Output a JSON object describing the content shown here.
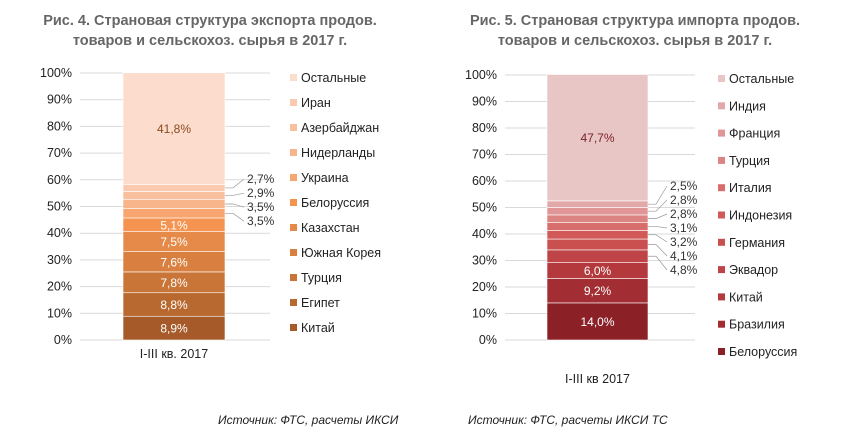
{
  "chart_data": [
    {
      "type": "bar",
      "stacked": true,
      "title": [
        "Рис. 4. Страновая структура экспорта продов.",
        "товаров и сельскохоз. сырья в 2017 г."
      ],
      "categories": [
        "I-III кв. 2017"
      ],
      "yticks": [
        "0%",
        "10%",
        "20%",
        "30%",
        "40%",
        "50%",
        "60%",
        "70%",
        "80%",
        "90%",
        "100%"
      ],
      "ylim": [
        0,
        100
      ],
      "legend_placement": "right",
      "series": [
        {
          "name": "Китай",
          "value": 8.9,
          "label": "8,9%",
          "color": "#a65a2a"
        },
        {
          "name": "Египет",
          "value": 8.8,
          "label": "8,8%",
          "color": "#b8692f"
        },
        {
          "name": "Турция",
          "value": 7.8,
          "label": "7,8%",
          "color": "#c97538"
        },
        {
          "name": "Южная Корея",
          "value": 7.6,
          "label": "7,6%",
          "color": "#d98040"
        },
        {
          "name": "Казахстан",
          "value": 7.5,
          "label": "7,5%",
          "color": "#e58a48"
        },
        {
          "name": "Белоруссия",
          "value": 5.1,
          "label": "5,1%",
          "color": "#f59350"
        },
        {
          "name": "Украина",
          "value": 3.5,
          "label": "3,5%",
          "color": "#f7a672"
        },
        {
          "name": "Нидерланды",
          "value": 3.5,
          "label": "3,5%",
          "color": "#f8b48a"
        },
        {
          "name": "Азербайджан",
          "value": 2.9,
          "label": "2,9%",
          "color": "#f9c0a0"
        },
        {
          "name": "Иран",
          "value": 2.7,
          "label": "2,7%",
          "color": "#fac9b0"
        },
        {
          "name": "Остальные",
          "value": 41.8,
          "label": "41,8%",
          "color": "#fcdccc",
          "label_color": "#8a4a1e"
        }
      ],
      "source": "Источник: ФТС, расчеты ИКСИ"
    },
    {
      "type": "bar",
      "stacked": true,
      "title": [
        "Рис. 5. Страновая структура импорта продов.",
        "товаров и сельскохоз. сырья в 2017 г."
      ],
      "categories": [
        "I-III кв 2017"
      ],
      "yticks": [
        "0%",
        "10%",
        "20%",
        "30%",
        "40%",
        "50%",
        "60%",
        "70%",
        "80%",
        "90%",
        "100%"
      ],
      "ylim": [
        0,
        100
      ],
      "legend_placement": "right",
      "series": [
        {
          "name": "Белоруссия",
          "value": 14.0,
          "label": "14,0%",
          "color": "#8b2027"
        },
        {
          "name": "Бразилия",
          "value": 9.2,
          "label": "9,2%",
          "color": "#a22e33"
        },
        {
          "name": "Китай",
          "value": 6.0,
          "label": "6,0%",
          "color": "#b3393c"
        },
        {
          "name": "Эквадор",
          "value": 4.8,
          "label": "4,8%",
          "color": "#bf4448"
        },
        {
          "name": "Германия",
          "value": 4.1,
          "label": "4,1%",
          "color": "#c9504f"
        },
        {
          "name": "Индонезия",
          "value": 3.2,
          "label": "3,2%",
          "color": "#d15a58"
        },
        {
          "name": "Италия",
          "value": 3.1,
          "label": "3,1%",
          "color": "#d86e6c"
        },
        {
          "name": "Турция",
          "value": 2.8,
          "label": "2,8%",
          "color": "#dc8482"
        },
        {
          "name": "Франция",
          "value": 2.8,
          "label": "2,8%",
          "color": "#e09696"
        },
        {
          "name": "Индия",
          "value": 2.5,
          "label": "2,5%",
          "color": "#e3a8a8"
        },
        {
          "name": "Остальные",
          "value": 47.7,
          "label": "47,7%",
          "color": "#e9c6c6",
          "label_color": "#7a1f24"
        }
      ],
      "source": "Источник: ФТС, расчеты ИКСИ ТС"
    }
  ]
}
